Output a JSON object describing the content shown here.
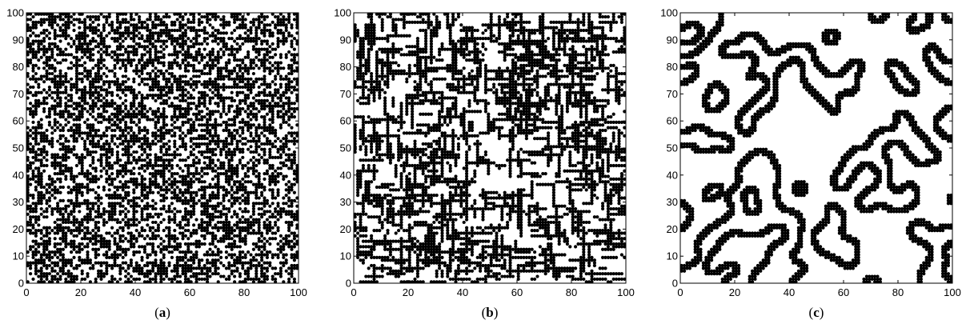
{
  "chart_data": [
    {
      "type": "scatter",
      "panel_label": {
        "open": "(",
        "letter": "a",
        "close": ")"
      },
      "xlim": [
        0,
        100
      ],
      "ylim": [
        0,
        100
      ],
      "xticks": [
        "0",
        "20",
        "40",
        "60",
        "80",
        "100"
      ],
      "yticks": [
        "0",
        "10",
        "20",
        "30",
        "40",
        "50",
        "60",
        "70",
        "80",
        "90",
        "100"
      ],
      "grid": false,
      "marker_color": "#000000",
      "grid_cells": 100,
      "pattern": "uniform-random",
      "fill_fraction": 0.5
    },
    {
      "type": "scatter",
      "panel_label": {
        "open": "(",
        "letter": "b",
        "close": ")"
      },
      "xlim": [
        0,
        100
      ],
      "ylim": [
        0,
        100
      ],
      "xticks": [
        "0",
        "20",
        "40",
        "60",
        "80",
        "100"
      ],
      "yticks": [
        "0",
        "10",
        "20",
        "30",
        "40",
        "50",
        "60",
        "70",
        "80",
        "90",
        "100"
      ],
      "grid": false,
      "marker_color": "#000000",
      "grid_cells": 100,
      "pattern": "branching-lattice",
      "fill_fraction": 0.45
    },
    {
      "type": "scatter",
      "panel_label": {
        "open": "(",
        "letter": "c",
        "close": ")"
      },
      "xlim": [
        0,
        100
      ],
      "ylim": [
        0,
        100
      ],
      "xticks": [
        "0",
        "20",
        "40",
        "60",
        "80",
        "100"
      ],
      "yticks": [
        "0",
        "10",
        "20",
        "30",
        "40",
        "50",
        "60",
        "70",
        "80",
        "90",
        "100"
      ],
      "grid": false,
      "marker_color": "#000000",
      "grid_cells": 100,
      "pattern": "clustered-boundaries",
      "fill_fraction": 0.3
    }
  ]
}
